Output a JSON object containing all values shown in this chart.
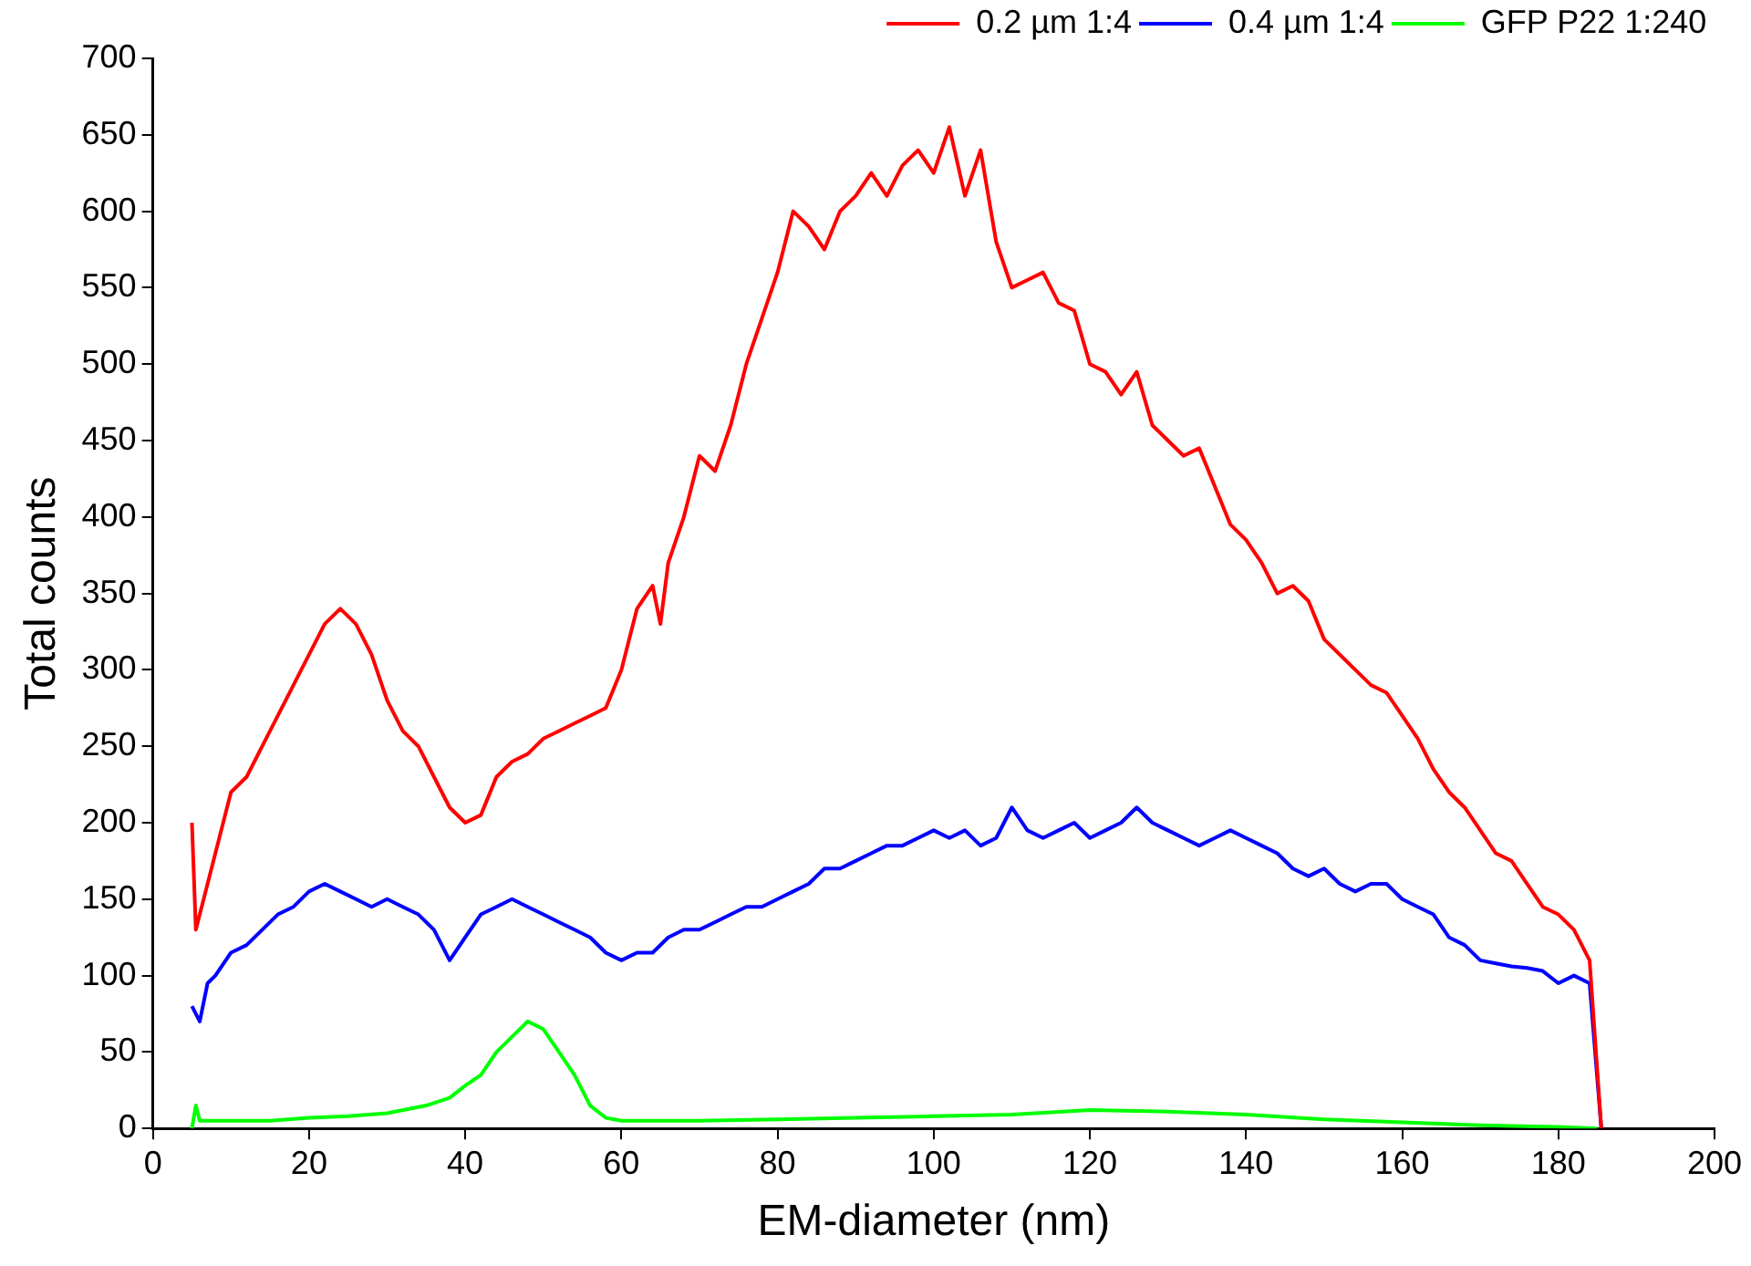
{
  "chart_data": {
    "type": "line",
    "xlabel": "EM-diameter (nm)",
    "ylabel": "Total counts",
    "xlim": [
      0,
      200
    ],
    "xticks": [
      0,
      20,
      40,
      60,
      80,
      100,
      120,
      140,
      160,
      180,
      200
    ],
    "ylim": [
      0,
      700
    ],
    "yticks": [
      0,
      50,
      100,
      150,
      200,
      250,
      300,
      350,
      400,
      450,
      500,
      550,
      600,
      650,
      700
    ],
    "grid": false,
    "legend": "top right",
    "marker": "none",
    "line_style": "solid",
    "series": [
      {
        "name": "0.2 µm 1:4",
        "color": "#ff0000",
        "x": [
          5,
          5.5,
          6,
          8,
          10,
          12,
          14,
          16,
          18,
          20,
          22,
          24,
          26,
          28,
          30,
          32,
          34,
          36,
          38,
          40,
          42,
          44,
          46,
          48,
          50,
          52,
          54,
          56,
          58,
          60,
          62,
          64,
          65,
          66,
          68,
          70,
          72,
          74,
          76,
          78,
          80,
          82,
          84,
          86,
          88,
          90,
          92,
          94,
          96,
          98,
          100,
          102,
          104,
          106,
          108,
          110,
          112,
          114,
          116,
          118,
          120,
          122,
          124,
          126,
          128,
          130,
          132,
          134,
          136,
          138,
          140,
          142,
          144,
          146,
          148,
          150,
          152,
          154,
          156,
          158,
          160,
          162,
          164,
          166,
          168,
          170,
          172,
          174,
          176,
          178,
          180,
          182,
          184,
          185.5
        ],
        "values": [
          200,
          130,
          140,
          180,
          220,
          230,
          250,
          270,
          290,
          310,
          330,
          340,
          330,
          310,
          280,
          260,
          250,
          230,
          210,
          200,
          205,
          230,
          240,
          245,
          255,
          260,
          265,
          270,
          275,
          300,
          340,
          355,
          330,
          370,
          400,
          440,
          430,
          460,
          500,
          530,
          560,
          600,
          590,
          575,
          600,
          610,
          625,
          610,
          630,
          640,
          625,
          655,
          610,
          640,
          580,
          550,
          555,
          560,
          540,
          535,
          500,
          495,
          480,
          495,
          460,
          450,
          440,
          445,
          420,
          395,
          385,
          370,
          350,
          355,
          345,
          320,
          310,
          300,
          290,
          285,
          270,
          255,
          235,
          220,
          210,
          195,
          180,
          175,
          160,
          145,
          140,
          130,
          110,
          0
        ]
      },
      {
        "name": "0.4 µm 1:4",
        "color": "#0000ff",
        "x": [
          5,
          6,
          7,
          8,
          10,
          12,
          14,
          16,
          18,
          20,
          22,
          24,
          26,
          28,
          30,
          32,
          34,
          36,
          38,
          40,
          42,
          44,
          46,
          48,
          50,
          52,
          54,
          56,
          58,
          60,
          62,
          64,
          66,
          68,
          70,
          72,
          74,
          76,
          78,
          80,
          82,
          84,
          86,
          88,
          90,
          92,
          94,
          96,
          98,
          100,
          102,
          104,
          106,
          108,
          110,
          112,
          114,
          116,
          118,
          120,
          122,
          124,
          126,
          128,
          130,
          132,
          134,
          136,
          138,
          140,
          142,
          144,
          146,
          148,
          150,
          152,
          154,
          156,
          158,
          160,
          162,
          164,
          166,
          168,
          170,
          172,
          174,
          176,
          178,
          180,
          182,
          184,
          185.5
        ],
        "values": [
          80,
          70,
          95,
          100,
          115,
          120,
          130,
          140,
          145,
          155,
          160,
          155,
          150,
          145,
          150,
          145,
          140,
          130,
          110,
          125,
          140,
          145,
          150,
          145,
          140,
          135,
          130,
          125,
          115,
          110,
          115,
          115,
          125,
          130,
          130,
          135,
          140,
          145,
          145,
          150,
          155,
          160,
          170,
          170,
          175,
          180,
          185,
          185,
          190,
          195,
          190,
          195,
          185,
          190,
          210,
          195,
          190,
          195,
          200,
          190,
          195,
          200,
          210,
          200,
          195,
          190,
          185,
          190,
          195,
          190,
          185,
          180,
          170,
          165,
          170,
          160,
          155,
          160,
          160,
          150,
          145,
          140,
          125,
          120,
          110,
          108,
          106,
          105,
          103,
          95,
          100,
          95,
          0
        ]
      },
      {
        "name": "GFP P22 1:240",
        "color": "#00ff00",
        "x": [
          5,
          5.5,
          6,
          8,
          10,
          15,
          20,
          25,
          30,
          35,
          38,
          40,
          42,
          44,
          46,
          48,
          50,
          52,
          54,
          56,
          58,
          60,
          70,
          80,
          90,
          100,
          110,
          120,
          130,
          140,
          150,
          160,
          170,
          180,
          185
        ],
        "values": [
          0,
          15,
          5,
          5,
          5,
          5,
          7,
          8,
          10,
          15,
          20,
          28,
          35,
          50,
          60,
          70,
          65,
          50,
          35,
          15,
          7,
          5,
          5,
          6,
          7,
          8,
          9,
          12,
          11,
          9,
          6,
          4,
          2,
          1,
          0
        ]
      }
    ]
  }
}
